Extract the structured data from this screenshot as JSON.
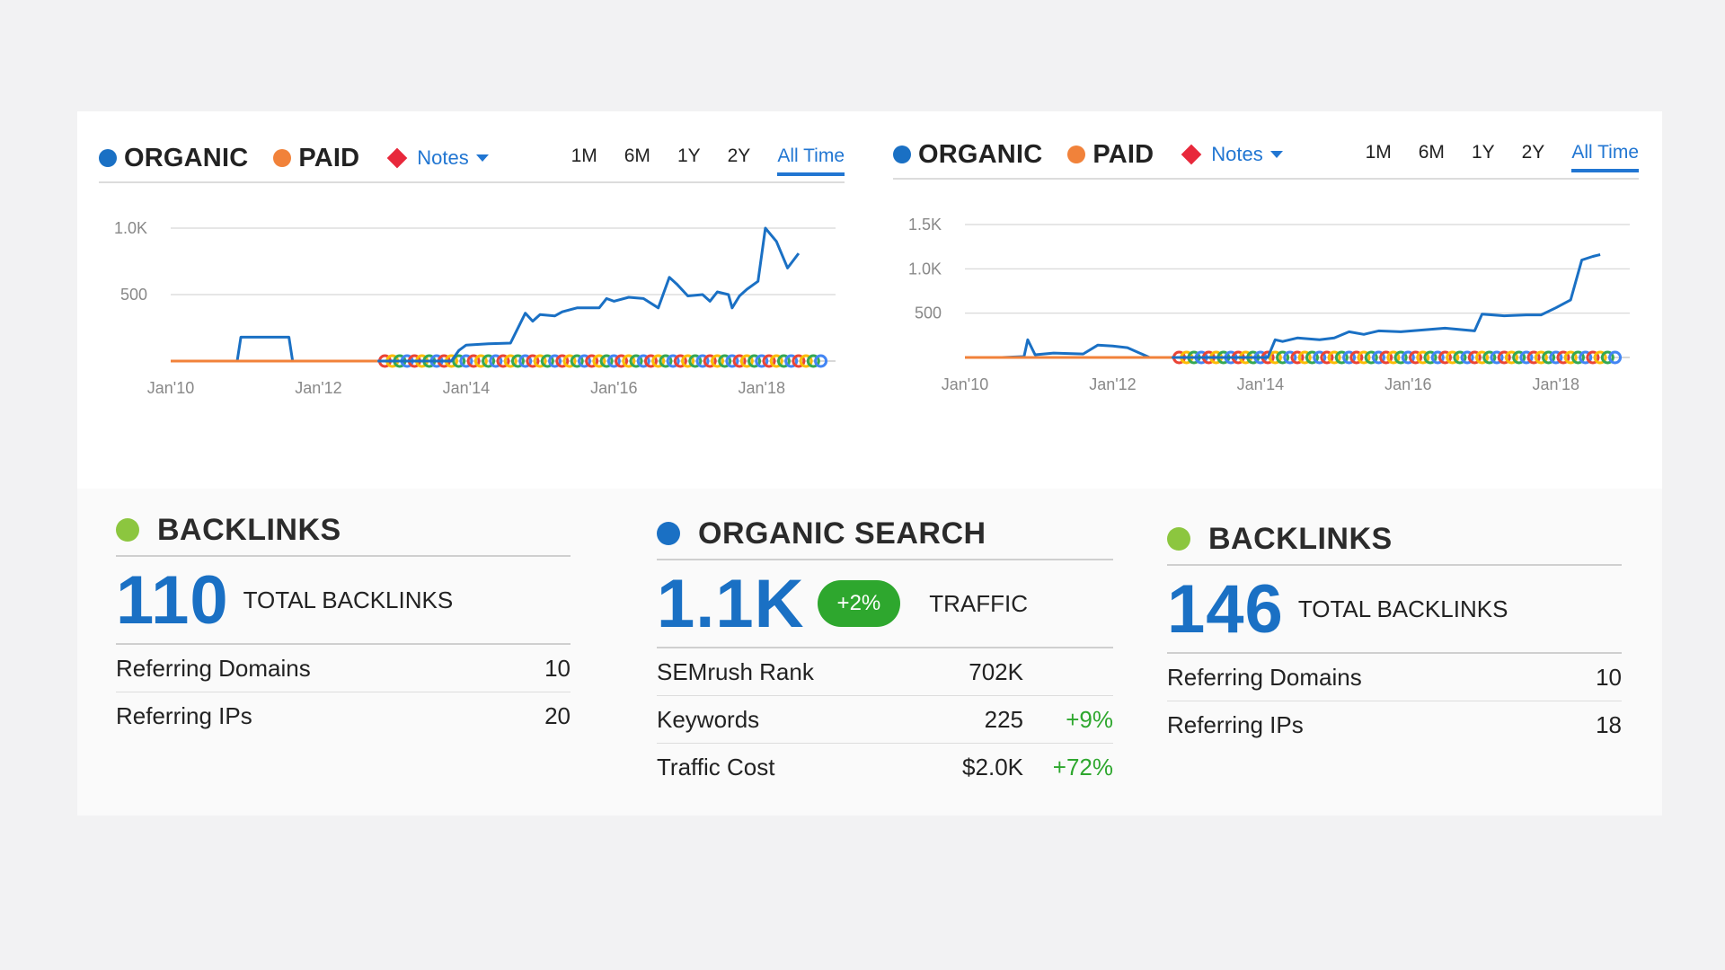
{
  "colors": {
    "organic": "#1a70c4",
    "paid": "#f1823a",
    "notes": "#e8283b",
    "link": "#2176d2",
    "positive": "#2ea72e",
    "backlinks": "#8cc63f"
  },
  "left_panel": {
    "legend": {
      "organic": "ORGANIC",
      "paid": "PAID",
      "notes": "Notes"
    },
    "ranges": [
      "1M",
      "6M",
      "1Y",
      "2Y",
      "All Time"
    ],
    "active_range": "All Time"
  },
  "right_panel": {
    "legend": {
      "organic": "ORGANIC",
      "paid": "PAID",
      "notes": "Notes"
    },
    "ranges": [
      "1M",
      "6M",
      "1Y",
      "2Y",
      "All Time"
    ],
    "active_range": "All Time"
  },
  "chart_data": [
    {
      "type": "line",
      "x_ticks": [
        "Jan'10",
        "Jan'12",
        "Jan'14",
        "Jan'16",
        "Jan'18"
      ],
      "y_ticks": [
        "500",
        "1.0K"
      ],
      "ylim": [
        0,
        1000
      ],
      "xlim": [
        2010.0,
        2019.0
      ],
      "grid": true,
      "series": [
        {
          "name": "ORGANIC",
          "points": [
            [
              2010.0,
              0
            ],
            [
              2010.5,
              0
            ],
            [
              2010.9,
              0
            ],
            [
              2010.95,
              180
            ],
            [
              2011.6,
              180
            ],
            [
              2011.65,
              0
            ],
            [
              2012.5,
              0
            ],
            [
              2013.8,
              0
            ],
            [
              2013.9,
              80
            ],
            [
              2014.0,
              120
            ],
            [
              2014.3,
              130
            ],
            [
              2014.6,
              135
            ],
            [
              2014.8,
              360
            ],
            [
              2014.9,
              300
            ],
            [
              2015.0,
              350
            ],
            [
              2015.2,
              340
            ],
            [
              2015.3,
              370
            ],
            [
              2015.5,
              400
            ],
            [
              2015.8,
              400
            ],
            [
              2015.9,
              470
            ],
            [
              2016.0,
              450
            ],
            [
              2016.2,
              480
            ],
            [
              2016.4,
              470
            ],
            [
              2016.6,
              400
            ],
            [
              2016.75,
              630
            ],
            [
              2016.85,
              580
            ],
            [
              2017.0,
              490
            ],
            [
              2017.2,
              500
            ],
            [
              2017.3,
              450
            ],
            [
              2017.4,
              520
            ],
            [
              2017.55,
              500
            ],
            [
              2017.6,
              400
            ],
            [
              2017.7,
              490
            ],
            [
              2017.8,
              540
            ],
            [
              2017.95,
              600
            ],
            [
              2018.05,
              1000
            ],
            [
              2018.2,
              900
            ],
            [
              2018.35,
              700
            ],
            [
              2018.5,
              810
            ]
          ]
        },
        {
          "name": "PAID",
          "points": [
            [
              2010.0,
              0
            ],
            [
              2012.8,
              0
            ]
          ]
        }
      ]
    },
    {
      "type": "line",
      "x_ticks": [
        "Jan'10",
        "Jan'12",
        "Jan'14",
        "Jan'16",
        "Jan'18"
      ],
      "y_ticks": [
        "500",
        "1.0K",
        "1.5K"
      ],
      "ylim": [
        0,
        1500
      ],
      "xlim": [
        2010.0,
        2019.0
      ],
      "grid": true,
      "series": [
        {
          "name": "ORGANIC",
          "points": [
            [
              2010.0,
              0
            ],
            [
              2010.5,
              0
            ],
            [
              2010.8,
              10
            ],
            [
              2010.85,
              200
            ],
            [
              2010.95,
              30
            ],
            [
              2011.2,
              50
            ],
            [
              2011.6,
              40
            ],
            [
              2011.8,
              140
            ],
            [
              2012.0,
              130
            ],
            [
              2012.2,
              110
            ],
            [
              2012.5,
              0
            ],
            [
              2013.6,
              0
            ],
            [
              2014.1,
              0
            ],
            [
              2014.2,
              200
            ],
            [
              2014.3,
              180
            ],
            [
              2014.5,
              220
            ],
            [
              2014.8,
              200
            ],
            [
              2015.0,
              220
            ],
            [
              2015.2,
              290
            ],
            [
              2015.4,
              260
            ],
            [
              2015.6,
              300
            ],
            [
              2015.9,
              290
            ],
            [
              2016.2,
              310
            ],
            [
              2016.5,
              330
            ],
            [
              2016.9,
              300
            ],
            [
              2017.0,
              490
            ],
            [
              2017.3,
              470
            ],
            [
              2017.6,
              480
            ],
            [
              2017.8,
              480
            ],
            [
              2018.0,
              560
            ],
            [
              2018.2,
              650
            ],
            [
              2018.35,
              1100
            ],
            [
              2018.5,
              1140
            ],
            [
              2018.6,
              1160
            ]
          ]
        },
        {
          "name": "PAID",
          "points": [
            [
              2010.0,
              0
            ],
            [
              2012.8,
              0
            ]
          ]
        }
      ]
    }
  ],
  "stats": {
    "backlinks_left": {
      "title": "BACKLINKS",
      "value": "110",
      "caption": "TOTAL BACKLINKS",
      "rows": [
        {
          "label": "Referring Domains",
          "value": "10"
        },
        {
          "label": "Referring IPs",
          "value": "20"
        }
      ]
    },
    "organic": {
      "title": "ORGANIC SEARCH",
      "value": "1.1K",
      "badge": "+2%",
      "caption": "TRAFFIC",
      "rows": [
        {
          "label": "SEMrush Rank",
          "value": "702K",
          "change": ""
        },
        {
          "label": "Keywords",
          "value": "225",
          "change": "+9%"
        },
        {
          "label": "Traffic Cost",
          "value": "$2.0K",
          "change": "+72%"
        }
      ]
    },
    "backlinks_right": {
      "title": "BACKLINKS",
      "value": "146",
      "caption": "TOTAL BACKLINKS",
      "rows": [
        {
          "label": "Referring Domains",
          "value": "10"
        },
        {
          "label": "Referring IPs",
          "value": "18"
        }
      ]
    }
  }
}
